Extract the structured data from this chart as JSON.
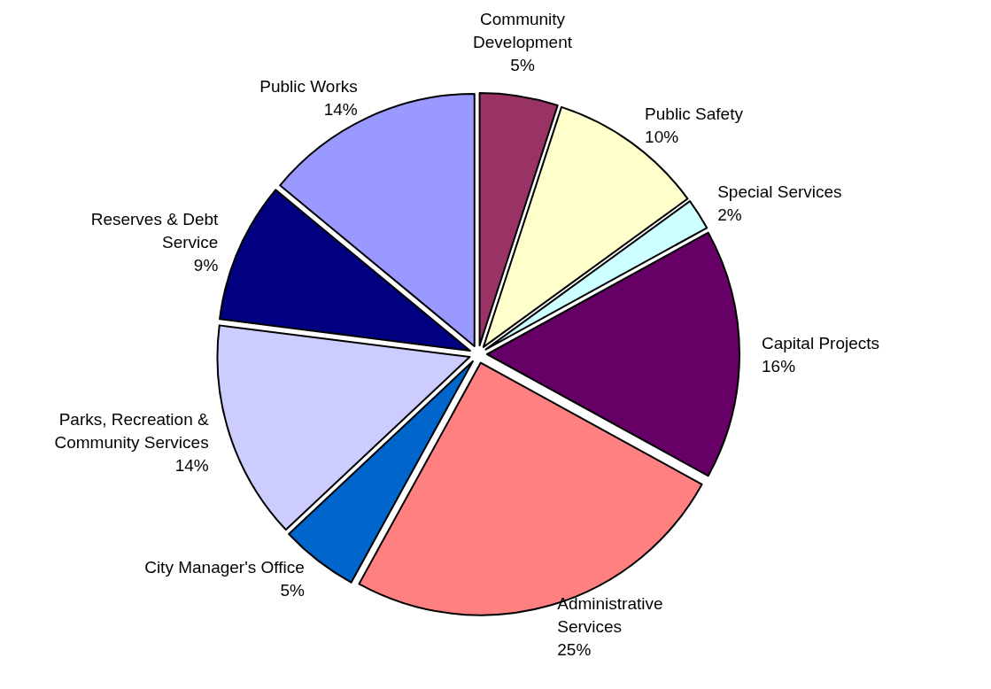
{
  "chart_data": {
    "type": "pie",
    "categories": [
      "Community\nDevelopment",
      "Public Safety",
      "Special Services",
      "Capital Projects",
      "Administrative\nServices",
      "City Manager's Office",
      "Parks, Recreation &\nCommunity Services",
      "Reserves & Debt\nService",
      "Public Works"
    ],
    "values": [
      5,
      10,
      2,
      16,
      25,
      5,
      14,
      9,
      14
    ],
    "colors": [
      "#993366",
      "#ffffcc",
      "#ccffff",
      "#660066",
      "#ff8080",
      "#0066cc",
      "#ccccff",
      "#000080",
      "#9999ff"
    ],
    "value_labels": [
      "5%",
      "10%",
      "2%",
      "16%",
      "25%",
      "5%",
      "14%",
      "9%",
      "14%"
    ]
  }
}
